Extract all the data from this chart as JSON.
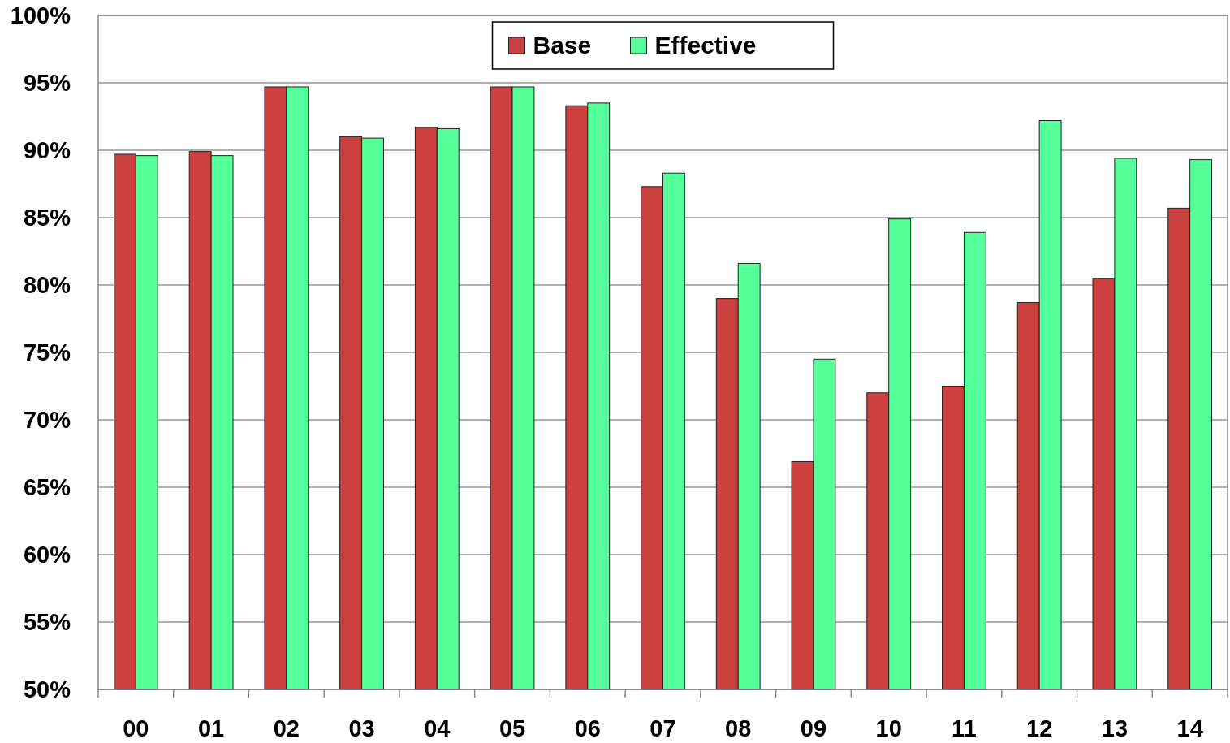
{
  "chart_data": {
    "type": "bar",
    "categories": [
      "00",
      "01",
      "02",
      "03",
      "04",
      "05",
      "06",
      "07",
      "08",
      "09",
      "10",
      "11",
      "12",
      "13",
      "14"
    ],
    "series": [
      {
        "name": "Base",
        "color": "#cc4040",
        "values": [
          89.7,
          89.9,
          94.7,
          91.0,
          91.7,
          94.7,
          93.3,
          87.3,
          79.0,
          66.9,
          72.0,
          72.5,
          78.7,
          80.5,
          85.7
        ]
      },
      {
        "name": "Effective",
        "color": "#55ff99",
        "values": [
          89.6,
          89.6,
          94.7,
          90.9,
          91.6,
          94.7,
          93.5,
          88.3,
          81.6,
          74.5,
          84.9,
          83.9,
          92.2,
          89.4,
          89.3
        ]
      }
    ],
    "ylim": [
      50,
      100
    ],
    "yticks": [
      {
        "value": 50,
        "label": "50%"
      },
      {
        "value": 55,
        "label": "55%"
      },
      {
        "value": 60,
        "label": "60%"
      },
      {
        "value": 65,
        "label": "65%"
      },
      {
        "value": 70,
        "label": "70%"
      },
      {
        "value": 75,
        "label": "75%"
      },
      {
        "value": 80,
        "label": "80%"
      },
      {
        "value": 85,
        "label": "85%"
      },
      {
        "value": 90,
        "label": "90%"
      },
      {
        "value": 95,
        "label": "95%"
      },
      {
        "value": 100,
        "label": "100%"
      }
    ],
    "grid": "y",
    "legend": "top"
  }
}
